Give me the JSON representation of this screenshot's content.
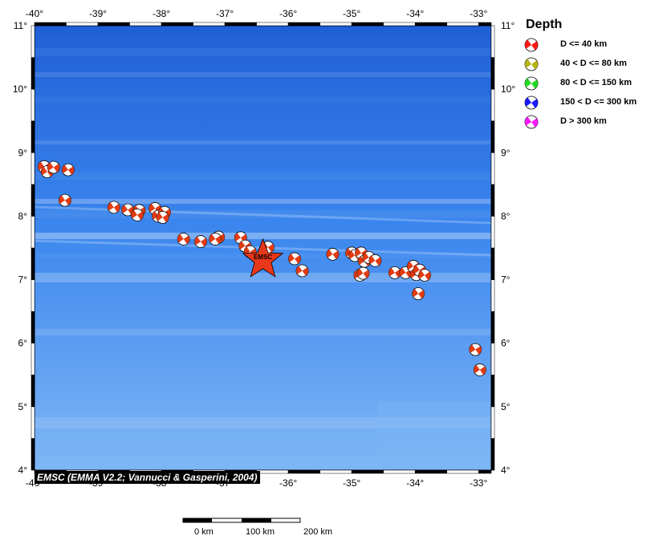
{
  "map": {
    "lon_range": [
      -40,
      -32.8
    ],
    "lat_range": [
      4,
      11
    ],
    "top_lon_labels": [
      "-40°",
      "-39°",
      "-38°",
      "-37°",
      "-36°",
      "-35°",
      "-34°",
      "-33°"
    ],
    "bottom_lon_labels": [
      "-40°",
      "-39°",
      "-38°",
      "-37°",
      "-36°",
      "-35°",
      "-34°",
      "-33°"
    ],
    "lat_labels": [
      "4°",
      "5°",
      "6°",
      "7°",
      "8°",
      "9°",
      "10°",
      "11°"
    ],
    "ocean_colors": {
      "deep": "#1f5fd6",
      "mid": "#3b86ee",
      "shallow": "#7fb6f5",
      "ridge": "#5c9bf0"
    }
  },
  "epicenter": {
    "label": "EMSC",
    "lon": -36.4,
    "lat": 7.35,
    "color": "#e8371a"
  },
  "events": [
    {
      "lon": -39.85,
      "lat": 8.78
    },
    {
      "lon": -39.8,
      "lat": 8.7
    },
    {
      "lon": -39.7,
      "lat": 8.77
    },
    {
      "lon": -39.47,
      "lat": 8.73
    },
    {
      "lon": -39.52,
      "lat": 8.25
    },
    {
      "lon": -38.75,
      "lat": 8.14
    },
    {
      "lon": -38.53,
      "lat": 8.1
    },
    {
      "lon": -38.35,
      "lat": 8.09
    },
    {
      "lon": -38.38,
      "lat": 8.02
    },
    {
      "lon": -38.1,
      "lat": 8.12
    },
    {
      "lon": -38.05,
      "lat": 8.0
    },
    {
      "lon": -37.95,
      "lat": 8.06
    },
    {
      "lon": -37.98,
      "lat": 7.98
    },
    {
      "lon": -37.65,
      "lat": 7.64
    },
    {
      "lon": -37.38,
      "lat": 7.6
    },
    {
      "lon": -37.1,
      "lat": 7.67
    },
    {
      "lon": -37.15,
      "lat": 7.64
    },
    {
      "lon": -36.75,
      "lat": 7.66
    },
    {
      "lon": -36.68,
      "lat": 7.53
    },
    {
      "lon": -36.6,
      "lat": 7.44
    },
    {
      "lon": -36.32,
      "lat": 7.51
    },
    {
      "lon": -35.9,
      "lat": 7.33
    },
    {
      "lon": -35.78,
      "lat": 7.14
    },
    {
      "lon": -35.3,
      "lat": 7.4
    },
    {
      "lon": -35.0,
      "lat": 7.42
    },
    {
      "lon": -34.95,
      "lat": 7.38
    },
    {
      "lon": -34.85,
      "lat": 7.42
    },
    {
      "lon": -34.8,
      "lat": 7.29
    },
    {
      "lon": -34.73,
      "lat": 7.35
    },
    {
      "lon": -34.63,
      "lat": 7.3
    },
    {
      "lon": -34.87,
      "lat": 7.07
    },
    {
      "lon": -34.82,
      "lat": 7.1
    },
    {
      "lon": -34.32,
      "lat": 7.11
    },
    {
      "lon": -34.15,
      "lat": 7.11
    },
    {
      "lon": -34.03,
      "lat": 7.21
    },
    {
      "lon": -33.98,
      "lat": 7.08
    },
    {
      "lon": -33.93,
      "lat": 7.15
    },
    {
      "lon": -33.85,
      "lat": 7.07
    },
    {
      "lon": -33.95,
      "lat": 6.78
    },
    {
      "lon": -33.05,
      "lat": 5.9
    },
    {
      "lon": -32.98,
      "lat": 5.58
    }
  ],
  "legend": {
    "title": "Depth",
    "items": [
      {
        "label": "D <= 40 km",
        "color": "#ff1a1a"
      },
      {
        "label": "40 < D <= 80 km",
        "color": "#b4b414"
      },
      {
        "label": "80 < D <= 150 km",
        "color": "#22d822"
      },
      {
        "label": "150 < D <= 300 km",
        "color": "#1a1aff"
      },
      {
        "label": "D > 300 km",
        "color": "#ff1aff"
      }
    ]
  },
  "credit": "EMSC (EMMA V2.2; Vannucci & Gasperini, 2004)",
  "scale_bar": {
    "labels": [
      "0 km",
      "100 km",
      "200 km"
    ]
  }
}
